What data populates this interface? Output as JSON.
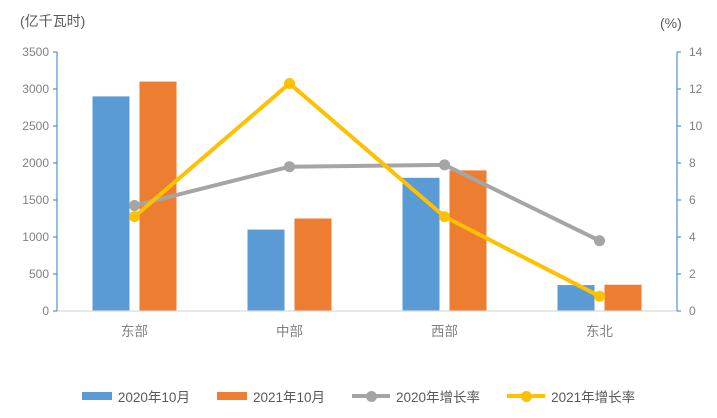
{
  "chart_data": {
    "type": "bar",
    "subtype": "bar-line-combo",
    "categories": [
      "东部",
      "中部",
      "西部",
      "东北"
    ],
    "series": [
      {
        "name": "2020年10月",
        "kind": "bar",
        "axis": "left",
        "color": "#5B9BD5",
        "values": [
          2900,
          1100,
          1800,
          350
        ]
      },
      {
        "name": "2021年10月",
        "kind": "bar",
        "axis": "left",
        "color": "#ED7D31",
        "values": [
          3100,
          1250,
          1900,
          355
        ]
      },
      {
        "name": "2020年增长率",
        "kind": "line",
        "axis": "right",
        "color": "#A5A5A5",
        "values": [
          5.7,
          7.8,
          7.9,
          3.8
        ]
      },
      {
        "name": "2021年增长率",
        "kind": "line",
        "axis": "right",
        "color": "#FFC000",
        "values": [
          5.1,
          12.3,
          5.1,
          0.8
        ]
      }
    ],
    "left_axis": {
      "title": "(亿千瓦时)",
      "min": 0,
      "max": 3500,
      "step": 500
    },
    "right_axis": {
      "title": "(%)",
      "min": 0,
      "max": 14,
      "step": 2
    },
    "grid": false,
    "legend_position": "bottom",
    "title": ""
  },
  "style": {
    "axis_line_color": "#5B9BD5",
    "baseline_color": "#D9D9D9",
    "tick_label_color": "#808080",
    "category_label_color": "#808080",
    "axis_title_color": "#595959",
    "legend_text_color": "#595959",
    "background": "#FFFFFF"
  }
}
